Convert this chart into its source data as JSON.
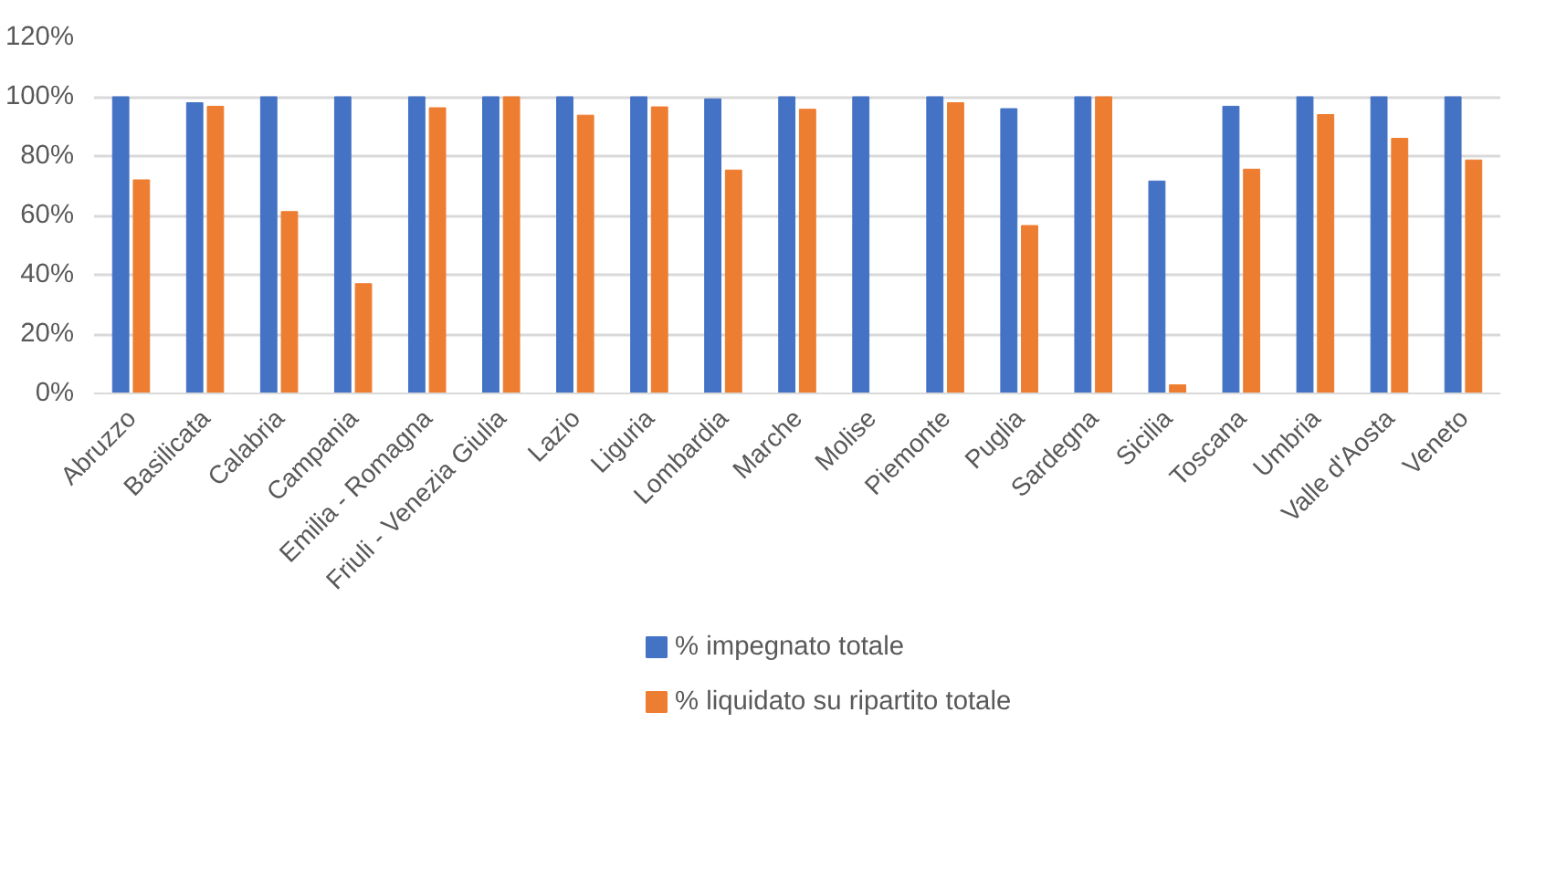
{
  "chart_data": {
    "type": "bar",
    "categories": [
      "Abruzzo",
      "Basilicata",
      "Calabria",
      "Campania",
      "Emilia - Romagna",
      "Friuli - Venezia Giulia",
      "Lazio",
      "Liguria",
      "Lombardia",
      "Marche",
      "Molise",
      "Piemonte",
      "Puglia",
      "Sardegna",
      "Sicilia",
      "Toscana",
      "Umbria",
      "Valle d'Aosta",
      "Veneto"
    ],
    "series": [
      {
        "name": "% impegnato totale",
        "color": "#4472c4",
        "values": [
          100,
          98,
          100,
          100,
          100,
          100,
          100,
          100,
          99.3,
          100,
          100,
          100,
          96,
          100,
          71.6,
          96.8,
          100,
          100,
          100
        ]
      },
      {
        "name": "%  liquidato su ripartito totale",
        "color": "#ed7d31",
        "values": [
          72,
          96.8,
          61.3,
          37,
          96.3,
          100,
          93.8,
          96.6,
          75.3,
          95.8,
          0,
          98,
          56.6,
          100,
          2.9,
          75.6,
          94,
          86,
          78.7
        ]
      }
    ],
    "ylim": [
      0,
      120
    ],
    "yticks": [
      {
        "value": 0,
        "label": "0%"
      },
      {
        "value": 20,
        "label": "20%"
      },
      {
        "value": 40,
        "label": "40%"
      },
      {
        "value": 60,
        "label": "60%"
      },
      {
        "value": 80,
        "label": "80%"
      },
      {
        "value": 100,
        "label": "100%"
      },
      {
        "value": 120,
        "label": "120%"
      }
    ],
    "grid": "y",
    "legend": "bottom"
  }
}
